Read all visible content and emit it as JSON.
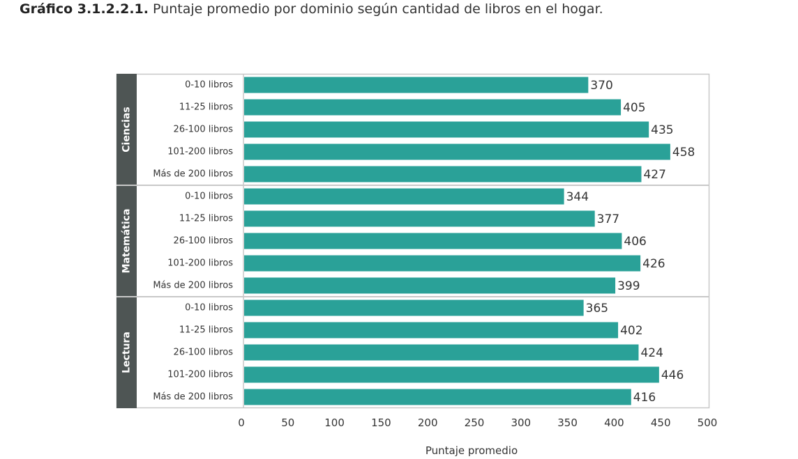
{
  "header": {
    "label": "Gráfico 3.1.2.2.1.",
    "title": "Puntaje promedio por dominio según cantidad de libros en el hogar."
  },
  "colors": {
    "bar": "#2aa198",
    "group_panel": "#4e5554",
    "frame": "#c8c8c8",
    "text": "#333333"
  },
  "chart_data": {
    "type": "bar",
    "orientation": "horizontal",
    "title": "Puntaje promedio por dominio según cantidad de libros en el hogar.",
    "xlabel": "Puntaje promedio",
    "ylabel": "",
    "xlim": [
      0,
      500
    ],
    "xticks": [
      0,
      50,
      100,
      150,
      200,
      250,
      300,
      350,
      400,
      450,
      500
    ],
    "grid": false,
    "legend": "none",
    "groups": [
      {
        "name": "Ciencias",
        "categories": [
          "0-10 libros",
          "11-25 libros",
          "26-100 libros",
          "101-200 libros",
          "Más de 200 libros"
        ],
        "values": [
          370,
          405,
          435,
          458,
          427
        ]
      },
      {
        "name": "Matemática",
        "categories": [
          "0-10 libros",
          "11-25 libros",
          "26-100 libros",
          "101-200 libros",
          "Más de 200 libros"
        ],
        "values": [
          344,
          377,
          406,
          426,
          399
        ]
      },
      {
        "name": "Lectura",
        "categories": [
          "0-10 libros",
          "11-25 libros",
          "26-100 libros",
          "101-200 libros",
          "Más de 200 libros"
        ],
        "values": [
          365,
          402,
          424,
          446,
          416
        ]
      }
    ]
  }
}
